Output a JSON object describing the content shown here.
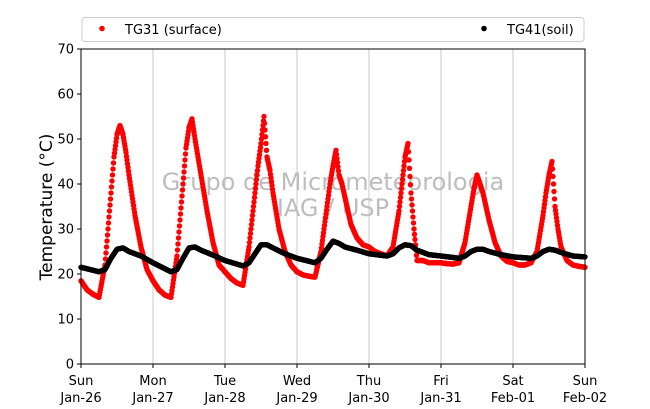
{
  "chart_data": {
    "type": "scatter",
    "ylabel": "Temperature (°C)",
    "xlabel": "",
    "ylim": [
      0,
      70
    ],
    "yticks": [
      0,
      10,
      20,
      30,
      40,
      50,
      60,
      70
    ],
    "xlim": [
      "2020-01-26",
      "2020-02-02"
    ],
    "xticks": [
      {
        "date": "2020-01-26",
        "weekday": "Sun",
        "label": "Jan-26"
      },
      {
        "date": "2020-01-27",
        "weekday": "Mon",
        "label": "Jan-27"
      },
      {
        "date": "2020-01-28",
        "weekday": "Tue",
        "label": "Jan-28"
      },
      {
        "date": "2020-01-29",
        "weekday": "Wed",
        "label": "Jan-29"
      },
      {
        "date": "2020-01-30",
        "weekday": "Thu",
        "label": "Jan-30"
      },
      {
        "date": "2020-01-31",
        "weekday": "Fri",
        "label": "Jan-31"
      },
      {
        "date": "2020-02-01",
        "weekday": "Sat",
        "label": "Feb-01"
      },
      {
        "date": "2020-02-02",
        "weekday": "Sun",
        "label": "Feb-02"
      }
    ],
    "grid": "vertical",
    "legend": "top",
    "watermark": [
      "Grupo de Micrometeorologia",
      "IAG / USP"
    ],
    "series": [
      {
        "name": "TG31 (surface)",
        "color": "#ff0000",
        "points": [
          [
            "2020-01-26 00:00",
            18.5
          ],
          [
            "2020-01-26 02:00",
            16.5
          ],
          [
            "2020-01-26 04:00",
            15.5
          ],
          [
            "2020-01-26 06:00",
            14.8
          ],
          [
            "2020-01-26 08:00",
            22
          ],
          [
            "2020-01-26 10:00",
            38
          ],
          [
            "2020-01-26 11:00",
            46
          ],
          [
            "2020-01-26 12:00",
            51
          ],
          [
            "2020-01-26 13:00",
            53
          ],
          [
            "2020-01-26 14:00",
            51
          ],
          [
            "2020-01-26 15:00",
            47
          ],
          [
            "2020-01-26 16:00",
            42
          ],
          [
            "2020-01-26 18:00",
            33
          ],
          [
            "2020-01-26 20:00",
            26
          ],
          [
            "2020-01-26 22:00",
            21
          ],
          [
            "2020-01-27 00:00",
            18.5
          ],
          [
            "2020-01-27 02:00",
            16.5
          ],
          [
            "2020-01-27 04:00",
            15.3
          ],
          [
            "2020-01-27 06:00",
            14.8
          ],
          [
            "2020-01-27 08:00",
            24
          ],
          [
            "2020-01-27 10:00",
            40
          ],
          [
            "2020-01-27 11:00",
            48
          ],
          [
            "2020-01-27 12:00",
            52.5
          ],
          [
            "2020-01-27 13:00",
            54.5
          ],
          [
            "2020-01-27 14:00",
            50
          ],
          [
            "2020-01-27 15:00",
            46
          ],
          [
            "2020-01-27 16:00",
            42
          ],
          [
            "2020-01-27 18:00",
            34
          ],
          [
            "2020-01-27 20:00",
            27
          ],
          [
            "2020-01-27 22:00",
            22
          ],
          [
            "2020-01-28 00:00",
            20.5
          ],
          [
            "2020-01-28 02:00",
            19
          ],
          [
            "2020-01-28 04:00",
            18
          ],
          [
            "2020-01-28 06:00",
            17.5
          ],
          [
            "2020-01-28 08:00",
            26
          ],
          [
            "2020-01-28 10:00",
            38
          ],
          [
            "2020-01-28 11:00",
            44
          ],
          [
            "2020-01-28 12:00",
            49
          ],
          [
            "2020-01-28 13:00",
            55
          ],
          [
            "2020-01-28 14:00",
            46
          ],
          [
            "2020-01-28 15:00",
            43
          ],
          [
            "2020-01-28 16:00",
            38
          ],
          [
            "2020-01-28 18:00",
            30
          ],
          [
            "2020-01-28 20:00",
            25
          ],
          [
            "2020-01-28 22:00",
            22
          ],
          [
            "2020-01-29 00:00",
            20.5
          ],
          [
            "2020-01-29 02:00",
            19.8
          ],
          [
            "2020-01-29 04:00",
            19.5
          ],
          [
            "2020-01-29 06:00",
            19.3
          ],
          [
            "2020-01-29 08:00",
            25
          ],
          [
            "2020-01-29 10:00",
            35
          ],
          [
            "2020-01-29 11:00",
            40
          ],
          [
            "2020-01-29 12:00",
            44
          ],
          [
            "2020-01-29 13:00",
            47.5
          ],
          [
            "2020-01-29 14:00",
            42
          ],
          [
            "2020-01-29 15:00",
            40
          ],
          [
            "2020-01-29 16:00",
            37
          ],
          [
            "2020-01-29 18:00",
            31
          ],
          [
            "2020-01-29 20:00",
            28
          ],
          [
            "2020-01-29 22:00",
            26.5
          ],
          [
            "2020-01-30 00:00",
            26
          ],
          [
            "2020-01-30 02:00",
            25
          ],
          [
            "2020-01-30 04:00",
            24.5
          ],
          [
            "2020-01-30 06:00",
            24
          ],
          [
            "2020-01-30 08:00",
            26
          ],
          [
            "2020-01-30 10:00",
            34
          ],
          [
            "2020-01-30 11:00",
            40
          ],
          [
            "2020-01-30 12:00",
            46
          ],
          [
            "2020-01-30 13:00",
            49
          ],
          [
            "2020-01-30 14:00",
            38
          ],
          [
            "2020-01-30 15:00",
            30
          ],
          [
            "2020-01-30 16:00",
            23
          ],
          [
            "2020-01-30 18:00",
            23
          ],
          [
            "2020-01-30 20:00",
            22.5
          ],
          [
            "2020-01-30 22:00",
            22.5
          ],
          [
            "2020-01-31 00:00",
            22.5
          ],
          [
            "2020-01-31 02:00",
            22.3
          ],
          [
            "2020-01-31 04:00",
            22.2
          ],
          [
            "2020-01-31 06:00",
            22.5
          ],
          [
            "2020-01-31 08:00",
            27
          ],
          [
            "2020-01-31 10:00",
            35
          ],
          [
            "2020-01-31 11:00",
            39
          ],
          [
            "2020-01-31 12:00",
            42
          ],
          [
            "2020-01-31 13:00",
            40
          ],
          [
            "2020-01-31 14:00",
            38
          ],
          [
            "2020-01-31 15:00",
            35
          ],
          [
            "2020-01-31 16:00",
            32
          ],
          [
            "2020-01-31 18:00",
            27
          ],
          [
            "2020-01-31 20:00",
            24
          ],
          [
            "2020-01-31 22:00",
            22.8
          ],
          [
            "2020-02-01 00:00",
            22.5
          ],
          [
            "2020-02-01 02:00",
            22
          ],
          [
            "2020-02-01 04:00",
            22
          ],
          [
            "2020-02-01 06:00",
            22.5
          ],
          [
            "2020-02-01 08:00",
            25
          ],
          [
            "2020-02-01 10:00",
            33
          ],
          [
            "2020-02-01 11:00",
            38
          ],
          [
            "2020-02-01 12:00",
            42
          ],
          [
            "2020-02-01 13:00",
            45
          ],
          [
            "2020-02-01 14:00",
            35
          ],
          [
            "2020-02-01 15:00",
            30
          ],
          [
            "2020-02-01 16:00",
            26
          ],
          [
            "2020-02-01 18:00",
            23
          ],
          [
            "2020-02-01 20:00",
            22
          ],
          [
            "2020-02-01 22:00",
            21.7
          ],
          [
            "2020-02-02 00:00",
            21.5
          ]
        ]
      },
      {
        "name": "TG41(soil)",
        "color": "#000000",
        "points": [
          [
            "2020-01-26 00:00",
            21.5
          ],
          [
            "2020-01-26 06:00",
            20.5
          ],
          [
            "2020-01-26 08:00",
            21
          ],
          [
            "2020-01-26 10:00",
            23.5
          ],
          [
            "2020-01-26 12:00",
            25.5
          ],
          [
            "2020-01-26 14:00",
            25.8
          ],
          [
            "2020-01-26 16:00",
            25
          ],
          [
            "2020-01-26 20:00",
            24
          ],
          [
            "2020-01-27 00:00",
            22.5
          ],
          [
            "2020-01-27 06:00",
            20.5
          ],
          [
            "2020-01-27 08:00",
            21
          ],
          [
            "2020-01-27 10:00",
            23.5
          ],
          [
            "2020-01-27 12:00",
            25.8
          ],
          [
            "2020-01-27 14:00",
            26
          ],
          [
            "2020-01-27 16:00",
            25.3
          ],
          [
            "2020-01-27 20:00",
            24.2
          ],
          [
            "2020-01-28 00:00",
            23
          ],
          [
            "2020-01-28 06:00",
            21.8
          ],
          [
            "2020-01-28 08:00",
            22.5
          ],
          [
            "2020-01-28 10:00",
            24.5
          ],
          [
            "2020-01-28 12:00",
            26.5
          ],
          [
            "2020-01-28 14:00",
            26.5
          ],
          [
            "2020-01-28 16:00",
            25.8
          ],
          [
            "2020-01-28 20:00",
            24.5
          ],
          [
            "2020-01-29 00:00",
            23.5
          ],
          [
            "2020-01-29 06:00",
            22.5
          ],
          [
            "2020-01-29 08:00",
            23.5
          ],
          [
            "2020-01-29 10:00",
            25.5
          ],
          [
            "2020-01-29 12:00",
            27.3
          ],
          [
            "2020-01-29 14:00",
            26.8
          ],
          [
            "2020-01-29 16:00",
            26
          ],
          [
            "2020-01-29 20:00",
            25.3
          ],
          [
            "2020-01-30 00:00",
            24.5
          ],
          [
            "2020-01-30 06:00",
            24
          ],
          [
            "2020-01-30 08:00",
            24.5
          ],
          [
            "2020-01-30 10:00",
            25.8
          ],
          [
            "2020-01-30 12:00",
            26.5
          ],
          [
            "2020-01-30 14:00",
            26.3
          ],
          [
            "2020-01-30 16:00",
            25.3
          ],
          [
            "2020-01-30 20:00",
            24.3
          ],
          [
            "2020-01-31 00:00",
            24
          ],
          [
            "2020-01-31 06:00",
            23.5
          ],
          [
            "2020-01-31 08:00",
            24
          ],
          [
            "2020-01-31 10:00",
            25
          ],
          [
            "2020-01-31 12:00",
            25.5
          ],
          [
            "2020-01-31 14:00",
            25.5
          ],
          [
            "2020-01-31 16:00",
            25
          ],
          [
            "2020-01-31 20:00",
            24.3
          ],
          [
            "2020-02-01 00:00",
            23.8
          ],
          [
            "2020-02-01 06:00",
            23.5
          ],
          [
            "2020-02-01 08:00",
            24
          ],
          [
            "2020-02-01 10:00",
            25
          ],
          [
            "2020-02-01 12:00",
            25.5
          ],
          [
            "2020-02-01 14:00",
            25.3
          ],
          [
            "2020-02-01 16:00",
            24.8
          ],
          [
            "2020-02-01 20:00",
            24
          ],
          [
            "2020-02-02 00:00",
            23.8
          ]
        ]
      }
    ]
  }
}
